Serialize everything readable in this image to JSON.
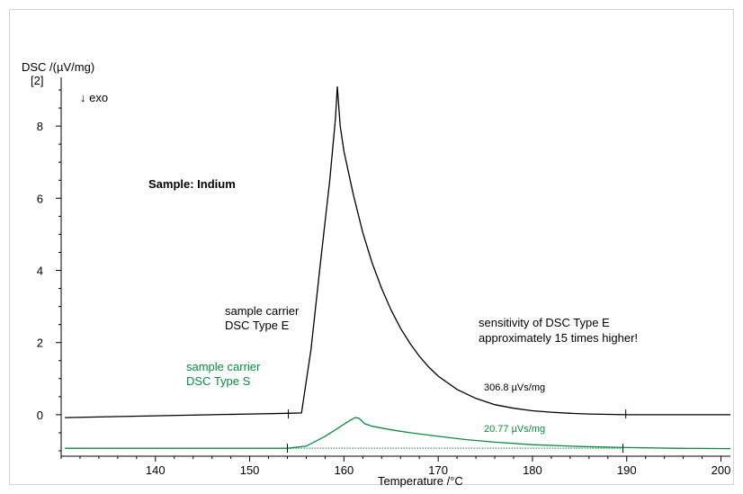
{
  "chart_data": {
    "type": "line",
    "ylabel": "DSC /(µV/mg)",
    "ylabel_index": "[2]",
    "exo_label": "↓ exo",
    "xlabel": "Temperature /°C",
    "xlim": [
      130,
      201
    ],
    "ylim": [
      -1.15,
      9.35
    ],
    "x_ticks": [
      140,
      150,
      160,
      170,
      180,
      190,
      200
    ],
    "y_ticks": [
      0,
      2,
      4,
      6,
      8
    ],
    "grid": false,
    "title": "Sample: Indium",
    "colors": {
      "type_e": "#000000",
      "type_s": "#0a8a3e"
    },
    "series": [
      {
        "name": "sample carrier DSC Type E",
        "color": "#000000",
        "x": [
          130.4,
          140,
          150,
          154,
          155.5,
          156.5,
          157.5,
          158.5,
          159.1,
          159.3,
          159.6,
          160,
          161,
          162,
          163,
          164,
          165,
          166,
          167,
          168,
          169,
          170,
          172,
          174,
          176,
          178,
          180,
          182,
          184,
          186,
          188,
          190,
          195,
          201
        ],
        "y": [
          -0.08,
          -0.03,
          0.02,
          0.04,
          0.05,
          1.8,
          4.2,
          6.5,
          8.2,
          9.1,
          8.0,
          7.3,
          6.1,
          5.05,
          4.2,
          3.5,
          2.9,
          2.4,
          1.98,
          1.62,
          1.32,
          1.07,
          0.7,
          0.45,
          0.28,
          0.18,
          0.11,
          0.07,
          0.04,
          0.02,
          0.01,
          0.0,
          0.0,
          0.0
        ]
      },
      {
        "name": "sample carrier DSC Type S",
        "color": "#0a8a3e",
        "x": [
          130.4,
          140,
          150,
          154,
          156,
          158,
          159.5,
          160.5,
          161.2,
          161.6,
          162.2,
          163,
          165,
          167,
          170,
          173,
          176,
          180,
          185,
          190,
          195,
          201
        ],
        "y": [
          -0.93,
          -0.93,
          -0.93,
          -0.93,
          -0.87,
          -0.6,
          -0.35,
          -0.18,
          -0.08,
          -0.1,
          -0.25,
          -0.32,
          -0.42,
          -0.5,
          -0.6,
          -0.69,
          -0.76,
          -0.83,
          -0.88,
          -0.91,
          -0.93,
          -0.94
        ]
      }
    ],
    "annotations": [
      {
        "series": "type_e",
        "lines": [
          "sample carrier",
          "DSC Type E"
        ]
      },
      {
        "series": "type_s",
        "lines": [
          "sample carrier",
          "DSC Type S"
        ]
      },
      {
        "series": "note",
        "lines": [
          "sensitivity of DSC Type E",
          "approximately 15 times higher!"
        ]
      },
      {
        "series": "type_e",
        "peak_area": "306.8 µVs/mg",
        "baseline_markers": [
          154.1,
          189.9
        ]
      },
      {
        "series": "type_s",
        "peak_area": "20.77 µVs/mg",
        "baseline_markers": [
          154.0,
          189.6
        ]
      }
    ]
  }
}
